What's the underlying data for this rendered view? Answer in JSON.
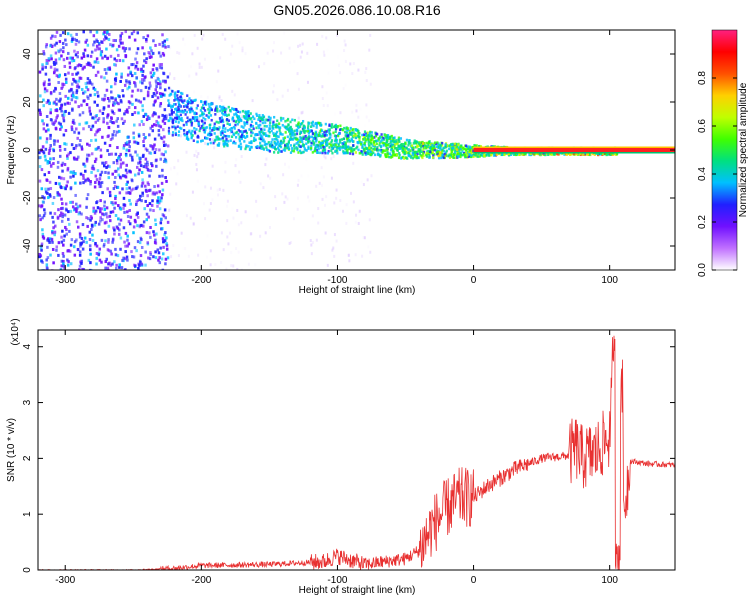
{
  "title": "GN05.2026.086.10.08.R16",
  "colors": {
    "axis": "#000000",
    "snr_line": "#e83030",
    "spectrogram_low": "#d8b8ff",
    "spectrogram_high": "#ff0000",
    "colorbar_stops": [
      "#ffffff",
      "#c070ff",
      "#7010ff",
      "#2020ff",
      "#00c0ff",
      "#00e080",
      "#40ff00",
      "#c0ff00",
      "#ffd000",
      "#ff5000",
      "#ff0000",
      "#ff2080"
    ]
  },
  "chart_data": [
    {
      "type": "heatmap",
      "name": "spectrogram",
      "xlabel": "Height of straight line (km)",
      "ylabel": "Frequency (Hz)",
      "xlim": [
        -320,
        148
      ],
      "ylim": [
        -50,
        50
      ],
      "xticks": [
        -300,
        -200,
        -100,
        0,
        100
      ],
      "yticks": [
        -40,
        -20,
        0,
        20,
        40
      ],
      "grid": false,
      "colorbar": {
        "label": "Normalized spectral amplitude",
        "range": [
          0,
          1
        ],
        "ticks": [
          0.0,
          0.2,
          0.4,
          0.6,
          0.8
        ]
      },
      "ridge": {
        "x": [
          -225,
          -200,
          -150,
          -100,
          -50,
          0,
          50,
          100,
          148
        ],
        "frequency": [
          17,
          12,
          7,
          5,
          1,
          0,
          0,
          0,
          0
        ]
      }
    },
    {
      "type": "line",
      "name": "snr",
      "xlabel": "Height of straight line (km)",
      "ylabel": "SNR (10 * v/v)",
      "scale_note": "(x10⁴)",
      "xlim": [
        -320,
        148
      ],
      "ylim": [
        0,
        4.3
      ],
      "xticks": [
        -300,
        -200,
        -100,
        0,
        100
      ],
      "yticks": [
        0,
        1,
        2,
        3,
        4
      ],
      "grid": false,
      "series": [
        {
          "x": [
            -320,
            -250,
            -220,
            -200,
            -150,
            -110,
            -100,
            -80,
            -50,
            -40,
            -30,
            -20,
            -10,
            0,
            10,
            30,
            50,
            70,
            75,
            80,
            90,
            100,
            104,
            106,
            115,
            130,
            148
          ],
          "values": [
            0.0,
            0.0,
            0.03,
            0.08,
            0.1,
            0.15,
            0.25,
            0.1,
            0.2,
            0.35,
            0.8,
            1.1,
            1.3,
            1.3,
            1.5,
            1.8,
            2.0,
            2.05,
            2.2,
            2.0,
            2.1,
            2.4,
            4.2,
            0.2,
            1.95,
            1.9,
            1.88
          ]
        }
      ]
    }
  ]
}
